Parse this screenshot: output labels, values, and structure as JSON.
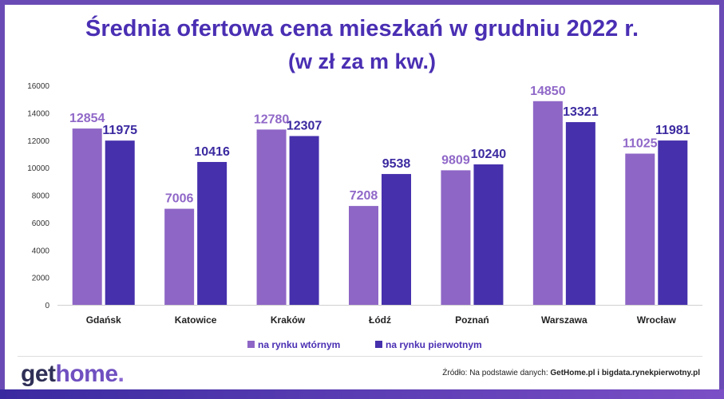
{
  "header": {
    "title": "Średnia ofertowa cena mieszkań w grudniu 2022 r.",
    "subtitle": "(w zł za m kw.)"
  },
  "footer": {
    "logo_get": "get",
    "logo_home": "home",
    "logo_dot": ".",
    "source_prefix": "Źródło: Na podstawie danych: ",
    "source_names": "GetHome.pl i bigdata.rynekpierwotny.pl"
  },
  "colors": {
    "secondary": "#8e66c6",
    "primary": "#4630ac",
    "value_secondary": "#9068c8",
    "value_primary": "#3b2aa0",
    "frame": "#6a4bb5"
  },
  "chart_data": {
    "type": "bar",
    "categories": [
      "Gdańsk",
      "Katowice",
      "Kraków",
      "Łódź",
      "Poznań",
      "Warszawa",
      "Wrocław"
    ],
    "series": [
      {
        "name": "na rynku wtórnym",
        "values": [
          12854,
          7006,
          12780,
          7208,
          9809,
          14850,
          11025
        ]
      },
      {
        "name": "na rynku pierwotnym",
        "values": [
          11975,
          10416,
          12307,
          9538,
          10240,
          13321,
          11981
        ]
      }
    ],
    "ylim": [
      0,
      16000
    ],
    "yticks": [
      0,
      2000,
      4000,
      6000,
      8000,
      10000,
      12000,
      14000,
      16000
    ],
    "title": "Średnia ofertowa cena mieszkań w grudniu 2022 r.",
    "subtitle": "(w zł za m kw.)",
    "xlabel": "",
    "ylabel": "",
    "grid": false,
    "legend": "bottom-center"
  }
}
